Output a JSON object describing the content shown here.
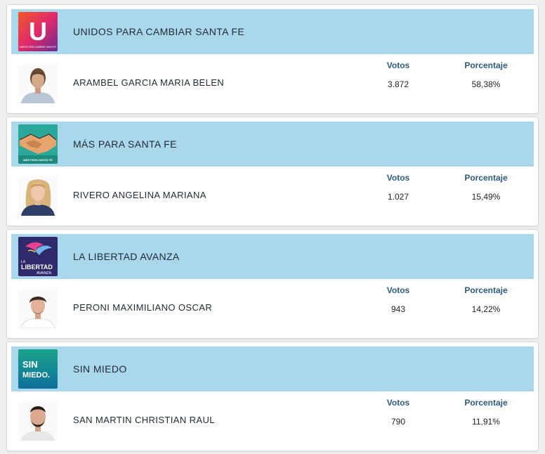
{
  "labels": {
    "votes_header": "Votos",
    "percent_header": "Porcentaje"
  },
  "parties": [
    {
      "party": "UNIDOS PARA CAMBIAR SANTA FE",
      "logo_text": "U",
      "logo_subtext": "UNIDOS PARA CAMBIAR SANTA FE",
      "logo_icon": "u-letter-logo",
      "candidate": "ARAMBEL GARCIA MARIA BELEN",
      "votes": "3.872",
      "percent": "58,38%"
    },
    {
      "party": "MÁS PARA SANTA FE",
      "logo_subtext": "MÁS PARA SANTA FE",
      "logo_icon": "handshake-logo",
      "candidate": "RIVERO ANGELINA MARIANA",
      "votes": "1.027",
      "percent": "15,49%"
    },
    {
      "party": "LA LIBERTAD AVANZA",
      "logo_text": "LA LIBERTAD AVANZA",
      "logo_icon": "lion-libertad-logo",
      "candidate": "PERONI MAXIMILIANO OSCAR",
      "votes": "943",
      "percent": "14,22%"
    },
    {
      "party": "SIN MIEDO",
      "logo_text": "SIN MIEDO.",
      "logo_icon": "sin-miedo-logo",
      "candidate": "SAN MARTIN CHRISTIAN RAUL",
      "votes": "790",
      "percent": "11,91%"
    }
  ]
}
